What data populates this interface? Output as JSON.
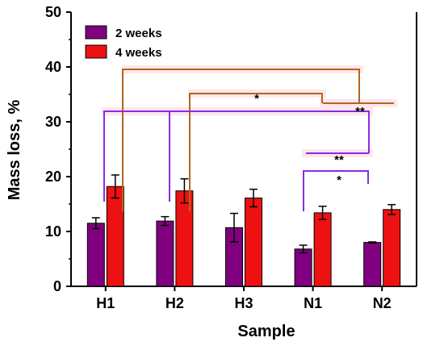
{
  "chart_data": {
    "type": "bar",
    "categories": [
      "H1",
      "H2",
      "H3",
      "N1",
      "N2"
    ],
    "series": [
      {
        "name": "2 weeks",
        "color": "#800080",
        "values": [
          11.5,
          11.9,
          10.7,
          6.8,
          8.0
        ],
        "errors": [
          1.0,
          0.8,
          2.6,
          0.7,
          0.1
        ]
      },
      {
        "name": "4 weeks",
        "color": "#ee1111",
        "values": [
          18.2,
          17.4,
          16.1,
          13.4,
          14.0
        ],
        "errors": [
          2.1,
          2.2,
          1.6,
          1.2,
          0.9
        ]
      }
    ],
    "xlabel": "Sample",
    "ylabel": "Mass loss, %",
    "ylim": [
      0,
      50
    ],
    "yticks": [
      0,
      10,
      20,
      30,
      40,
      50
    ],
    "grid": false,
    "legend_position": "top-left",
    "significance": [
      {
        "from": "H1 4 weeks",
        "to": "N2 4 weeks",
        "label": "**",
        "color": "#b5651d"
      },
      {
        "from": "H2 4 weeks",
        "to": "N1 4 weeks",
        "label": "*",
        "color": "#b5651d"
      },
      {
        "from": "H1 2 weeks",
        "to": "N2 2 weeks",
        "label": "**",
        "color": "#8b2be2"
      },
      {
        "from": "H2 2 weeks",
        "to": "N1 2 weeks",
        "label": "**",
        "color": "#8b2be2"
      },
      {
        "from": "N1 2 weeks",
        "to": "N2 2 weeks",
        "label": "*",
        "color": "#8b2be2"
      }
    ]
  }
}
